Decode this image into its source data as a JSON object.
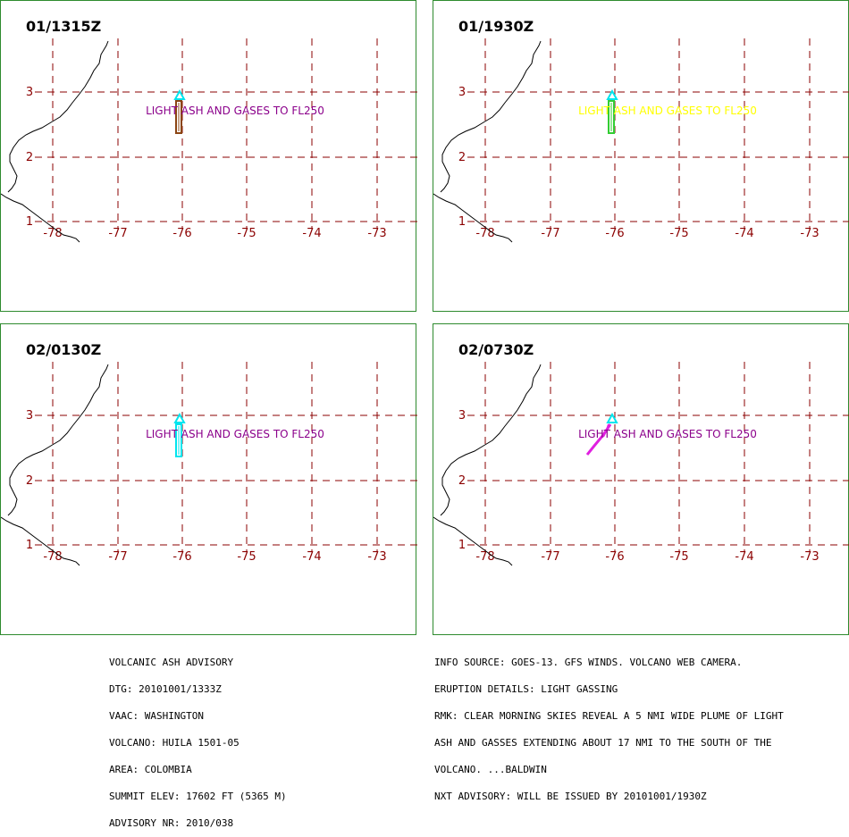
{
  "colors": {
    "grid": "#8b0000",
    "frame": "#2e8b2e",
    "coast": "#000000",
    "purple": "#8b008b",
    "yellow": "#ffff00",
    "cyan": "#00e5ee",
    "brown": "#8b4513",
    "green": "#32cd32",
    "magenta": "#e020e0"
  },
  "axes": {
    "lon_labels": [
      "-78",
      "-77",
      "-76",
      "-75",
      "-74",
      "-73"
    ],
    "lat_labels": [
      "3",
      "2",
      "1"
    ]
  },
  "panels": [
    {
      "time": "01/1315Z",
      "label": "LIGHT ASH AND GASES TO FL250",
      "label_color": "#8b008b",
      "plume_color": "#8b4513",
      "plume_shape": "column"
    },
    {
      "time": "01/1930Z",
      "label": "LIGHT ASH AND GASES TO FL250",
      "label_color": "#ffff00",
      "plume_color": "#32cd32",
      "plume_shape": "column"
    },
    {
      "time": "02/0130Z",
      "label": "LIGHT ASH AND GASES TO FL250",
      "label_color": "#8b008b",
      "plume_color": "#00e5ee",
      "plume_shape": "column"
    },
    {
      "time": "02/0730Z",
      "label": "LIGHT ASH AND GASES TO FL250",
      "label_color": "#8b008b",
      "plume_color": "#e020e0",
      "plume_shape": "diagonal"
    }
  ],
  "advisory_left": [
    "VOLCANIC ASH ADVISORY",
    "DTG: 20101001/1333Z",
    "VAAC: WASHINGTON",
    "VOLCANO: HUILA 1501-05",
    "AREA: COLOMBIA",
    "SUMMIT ELEV: 17602 FT (5365 M)",
    "ADVISORY NR: 2010/038"
  ],
  "advisory_right": [
    "INFO SOURCE: GOES-13. GFS WINDS. VOLCANO WEB CAMERA.",
    "ERUPTION DETAILS: LIGHT GASSING",
    "RMK: CLEAR MORNING SKIES REVEAL A 5 NMI WIDE PLUME OF LIGHT",
    "ASH AND GASSES EXTENDING ABOUT 17 NMI TO THE SOUTH OF THE",
    "VOLCANO. ...BALDWIN",
    "NXT ADVISORY: WILL BE ISSUED BY 20101001/1930Z"
  ]
}
